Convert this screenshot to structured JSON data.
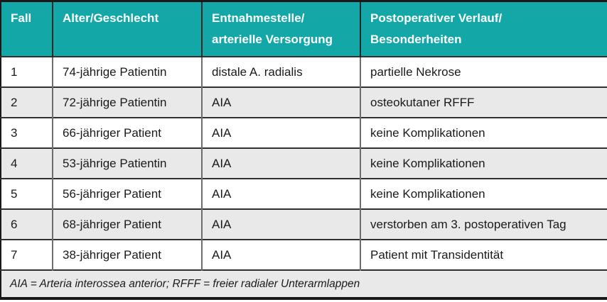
{
  "table": {
    "header": {
      "col1": "Fall",
      "col2": "Alter/Geschlecht",
      "col3_line1": "Entnahmestelle/",
      "col3_line2": "arterielle Versorgung",
      "col4_line1": "Postoperativer Verlauf/",
      "col4_line2": "Besonderheiten"
    },
    "rows": [
      {
        "fall": "1",
        "alter": "74-jährige Patientin",
        "entnahme": "distale A. radialis",
        "verlauf": "partielle Nekrose"
      },
      {
        "fall": "2",
        "alter": "72-jährige Patientin",
        "entnahme": "AIA",
        "verlauf": "osteokutaner RFFF"
      },
      {
        "fall": "3",
        "alter": "66-jähriger Patient",
        "entnahme": "AIA",
        "verlauf": "keine Komplikationen"
      },
      {
        "fall": "4",
        "alter": "53-jährige Patientin",
        "entnahme": "AIA",
        "verlauf": "keine Komplikationen"
      },
      {
        "fall": "5",
        "alter": "56-jähriger Patient",
        "entnahme": "AIA",
        "verlauf": "keine Komplikationen"
      },
      {
        "fall": "6",
        "alter": "68-jähriger Patient",
        "entnahme": "AIA",
        "verlauf": "verstorben am 3. postoperativen Tag"
      },
      {
        "fall": "7",
        "alter": "38-jähriger Patient",
        "entnahme": "AIA",
        "verlauf": "Patient mit Transidentität"
      }
    ],
    "footnote": "AIA = Arteria interossea anterior; RFFF = freier radialer Unterarmlappen"
  },
  "colors": {
    "header_bg": "#14a7a7",
    "header_text": "#ffffff",
    "row_alt_bg": "#e9e9e9",
    "body_text": "#1a1a1a",
    "border": "#191919"
  }
}
